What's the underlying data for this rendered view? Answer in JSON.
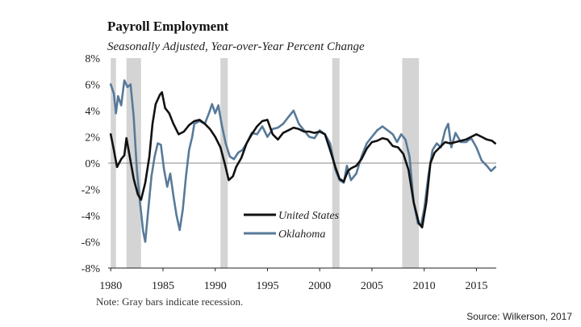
{
  "chart_data": {
    "type": "line",
    "title": "Payroll Employment",
    "subtitle": "Seasonally Adjusted, Year-over-Year Percent Change",
    "xlabel": "",
    "ylabel": "",
    "xlim": [
      1979.75,
      2016.9
    ],
    "ylim": [
      -8,
      8
    ],
    "x_ticks": [
      1980,
      1985,
      1990,
      1995,
      2000,
      2005,
      2010,
      2015
    ],
    "x_tick_labels": [
      "1980",
      "1985",
      "1990",
      "1995",
      "2000",
      "2005",
      "2010",
      "2015"
    ],
    "y_ticks": [
      -8,
      -6,
      -4,
      -2,
      0,
      2,
      4,
      6,
      8
    ],
    "y_tick_labels": [
      "-8%",
      "-6%",
      "-4%",
      "-2%",
      "0%",
      "2%",
      "4%",
      "6%",
      "8%"
    ],
    "legend_position": "center-bottom",
    "recessions": [
      {
        "start": 1980.0,
        "end": 1980.5
      },
      {
        "start": 1981.5,
        "end": 1982.9
      },
      {
        "start": 1990.5,
        "end": 1991.2
      },
      {
        "start": 2001.2,
        "end": 2001.9
      },
      {
        "start": 2007.9,
        "end": 2009.5
      }
    ],
    "series": [
      {
        "name": "United States",
        "color": "#111111",
        "points": [
          [
            1980.0,
            2.2
          ],
          [
            1980.3,
            1.0
          ],
          [
            1980.6,
            -0.3
          ],
          [
            1981.0,
            0.3
          ],
          [
            1981.3,
            0.6
          ],
          [
            1981.5,
            1.9
          ],
          [
            1981.8,
            0.6
          ],
          [
            1982.2,
            -1.2
          ],
          [
            1982.6,
            -2.4
          ],
          [
            1982.9,
            -2.8
          ],
          [
            1983.3,
            -1.5
          ],
          [
            1983.7,
            0.5
          ],
          [
            1984.0,
            3.0
          ],
          [
            1984.3,
            4.5
          ],
          [
            1984.7,
            5.2
          ],
          [
            1984.9,
            5.4
          ],
          [
            1985.2,
            4.2
          ],
          [
            1985.6,
            3.8
          ],
          [
            1986.0,
            3.0
          ],
          [
            1986.5,
            2.2
          ],
          [
            1987.0,
            2.4
          ],
          [
            1987.5,
            2.9
          ],
          [
            1988.0,
            3.2
          ],
          [
            1988.5,
            3.3
          ],
          [
            1989.0,
            3.0
          ],
          [
            1989.5,
            2.6
          ],
          [
            1990.0,
            2.0
          ],
          [
            1990.5,
            1.2
          ],
          [
            1990.9,
            0.0
          ],
          [
            1991.3,
            -1.3
          ],
          [
            1991.7,
            -1.0
          ],
          [
            1992.0,
            -0.3
          ],
          [
            1992.5,
            0.4
          ],
          [
            1993.0,
            1.5
          ],
          [
            1993.5,
            2.2
          ],
          [
            1994.0,
            2.8
          ],
          [
            1994.5,
            3.2
          ],
          [
            1995.0,
            3.3
          ],
          [
            1995.5,
            2.2
          ],
          [
            1996.0,
            1.8
          ],
          [
            1996.5,
            2.3
          ],
          [
            1997.0,
            2.5
          ],
          [
            1997.5,
            2.7
          ],
          [
            1998.0,
            2.6
          ],
          [
            1998.5,
            2.4
          ],
          [
            1999.0,
            2.4
          ],
          [
            1999.5,
            2.3
          ],
          [
            2000.0,
            2.4
          ],
          [
            2000.5,
            2.2
          ],
          [
            2001.0,
            1.0
          ],
          [
            2001.5,
            -0.3
          ],
          [
            2001.9,
            -1.2
          ],
          [
            2002.3,
            -1.4
          ],
          [
            2002.7,
            -0.6
          ],
          [
            2003.0,
            -0.4
          ],
          [
            2003.5,
            -0.2
          ],
          [
            2004.0,
            0.3
          ],
          [
            2004.5,
            1.1
          ],
          [
            2005.0,
            1.6
          ],
          [
            2005.5,
            1.7
          ],
          [
            2006.0,
            1.9
          ],
          [
            2006.5,
            1.8
          ],
          [
            2007.0,
            1.3
          ],
          [
            2007.5,
            1.2
          ],
          [
            2008.0,
            0.7
          ],
          [
            2008.5,
            -0.5
          ],
          [
            2009.0,
            -3.0
          ],
          [
            2009.5,
            -4.6
          ],
          [
            2009.8,
            -4.9
          ],
          [
            2010.2,
            -3.0
          ],
          [
            2010.6,
            0.0
          ],
          [
            2011.0,
            0.8
          ],
          [
            2011.5,
            1.2
          ],
          [
            2012.0,
            1.6
          ],
          [
            2012.5,
            1.5
          ],
          [
            2013.0,
            1.6
          ],
          [
            2013.5,
            1.7
          ],
          [
            2014.0,
            1.8
          ],
          [
            2014.5,
            2.0
          ],
          [
            2015.0,
            2.2
          ],
          [
            2015.5,
            2.0
          ],
          [
            2016.0,
            1.8
          ],
          [
            2016.5,
            1.7
          ],
          [
            2016.8,
            1.5
          ]
        ]
      },
      {
        "name": "Oklahoma",
        "color": "#587a99",
        "points": [
          [
            1980.0,
            6.0
          ],
          [
            1980.3,
            5.3
          ],
          [
            1980.5,
            3.8
          ],
          [
            1980.7,
            5.1
          ],
          [
            1981.0,
            4.4
          ],
          [
            1981.3,
            6.3
          ],
          [
            1981.6,
            5.8
          ],
          [
            1981.9,
            6.0
          ],
          [
            1982.2,
            3.5
          ],
          [
            1982.5,
            -0.5
          ],
          [
            1982.8,
            -3.0
          ],
          [
            1983.1,
            -5.2
          ],
          [
            1983.3,
            -6.0
          ],
          [
            1983.6,
            -3.5
          ],
          [
            1983.9,
            -1.0
          ],
          [
            1984.2,
            0.5
          ],
          [
            1984.5,
            1.5
          ],
          [
            1984.8,
            1.4
          ],
          [
            1985.1,
            -0.5
          ],
          [
            1985.4,
            -1.8
          ],
          [
            1985.7,
            -0.8
          ],
          [
            1986.0,
            -2.5
          ],
          [
            1986.3,
            -4.0
          ],
          [
            1986.6,
            -5.1
          ],
          [
            1986.9,
            -3.5
          ],
          [
            1987.2,
            -1.0
          ],
          [
            1987.5,
            1.0
          ],
          [
            1987.8,
            2.0
          ],
          [
            1988.0,
            3.0
          ],
          [
            1988.5,
            3.2
          ],
          [
            1989.0,
            3.0
          ],
          [
            1989.4,
            3.8
          ],
          [
            1989.7,
            4.5
          ],
          [
            1990.0,
            3.8
          ],
          [
            1990.3,
            4.4
          ],
          [
            1990.6,
            3.0
          ],
          [
            1991.0,
            1.5
          ],
          [
            1991.4,
            0.5
          ],
          [
            1991.8,
            0.3
          ],
          [
            1992.2,
            0.8
          ],
          [
            1992.6,
            1.0
          ],
          [
            1993.0,
            1.5
          ],
          [
            1993.5,
            2.3
          ],
          [
            1994.0,
            2.2
          ],
          [
            1994.5,
            2.8
          ],
          [
            1995.0,
            2.0
          ],
          [
            1995.5,
            2.6
          ],
          [
            1996.0,
            2.7
          ],
          [
            1996.5,
            3.0
          ],
          [
            1997.0,
            3.5
          ],
          [
            1997.5,
            4.0
          ],
          [
            1998.0,
            3.0
          ],
          [
            1998.5,
            2.5
          ],
          [
            1999.0,
            2.0
          ],
          [
            1999.5,
            1.9
          ],
          [
            2000.0,
            2.5
          ],
          [
            2000.5,
            2.2
          ],
          [
            2001.0,
            1.5
          ],
          [
            2001.5,
            -0.5
          ],
          [
            2001.9,
            -1.3
          ],
          [
            2002.3,
            -1.5
          ],
          [
            2002.6,
            -0.2
          ],
          [
            2003.0,
            -1.3
          ],
          [
            2003.5,
            -0.8
          ],
          [
            2004.0,
            0.5
          ],
          [
            2004.5,
            1.5
          ],
          [
            2005.0,
            2.0
          ],
          [
            2005.5,
            2.5
          ],
          [
            2006.0,
            2.8
          ],
          [
            2006.5,
            2.5
          ],
          [
            2007.0,
            2.2
          ],
          [
            2007.4,
            1.6
          ],
          [
            2007.8,
            2.2
          ],
          [
            2008.2,
            1.8
          ],
          [
            2008.6,
            0.5
          ],
          [
            2009.0,
            -3.0
          ],
          [
            2009.4,
            -4.6
          ],
          [
            2009.7,
            -4.7
          ],
          [
            2010.0,
            -3.5
          ],
          [
            2010.4,
            -1.0
          ],
          [
            2010.8,
            1.0
          ],
          [
            2011.2,
            1.5
          ],
          [
            2011.6,
            1.2
          ],
          [
            2012.0,
            2.5
          ],
          [
            2012.3,
            3.0
          ],
          [
            2012.6,
            1.2
          ],
          [
            2013.0,
            2.3
          ],
          [
            2013.5,
            1.6
          ],
          [
            2014.0,
            1.6
          ],
          [
            2014.5,
            1.9
          ],
          [
            2015.0,
            1.2
          ],
          [
            2015.5,
            0.2
          ],
          [
            2016.0,
            -0.2
          ],
          [
            2016.4,
            -0.6
          ],
          [
            2016.8,
            -0.3
          ]
        ]
      }
    ],
    "note": "Note: Gray bars indicate recession.",
    "source": "Source: Wilkerson, 2017"
  },
  "colors": {
    "recession": "#d4d4d4",
    "axis": "#222222",
    "zero_line": "#888888"
  }
}
